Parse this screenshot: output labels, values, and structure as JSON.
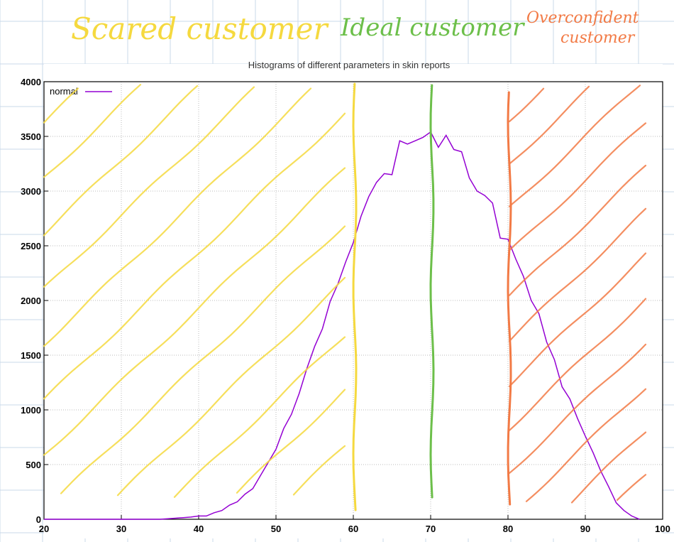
{
  "annotations": {
    "scared": "Scared customer",
    "ideal": "Ideal customer",
    "overconfident_line1": "Overconfident",
    "overconfident_line2": "customer"
  },
  "colors": {
    "scared": "#f5d93f",
    "ideal": "#6cbf4a",
    "overconfident": "#f27a45",
    "series": "#9400d3",
    "notebook_grid": "#c9d9ea"
  },
  "chart_data": {
    "type": "line",
    "title": "Histograms of different parameters in skin reports",
    "xlim": [
      20,
      100
    ],
    "ylim": [
      0,
      4000
    ],
    "xticks": [
      20,
      30,
      40,
      50,
      60,
      70,
      80,
      90,
      100
    ],
    "yticks": [
      0,
      500,
      1000,
      1500,
      2000,
      2500,
      3000,
      3500,
      4000
    ],
    "grid": true,
    "legend_position": "top-left",
    "series": [
      {
        "name": "normal",
        "color": "#9400d3",
        "x": [
          20,
          25,
          30,
          35,
          36,
          37,
          38,
          39,
          40,
          41,
          42,
          43,
          44,
          45,
          46,
          47,
          48,
          49,
          50,
          51,
          52,
          53,
          54,
          55,
          56,
          57,
          58,
          59,
          60,
          61,
          62,
          63,
          64,
          65,
          66,
          67,
          68,
          69,
          70,
          71,
          72,
          73,
          74,
          75,
          76,
          77,
          78,
          79,
          80,
          81,
          82,
          83,
          84,
          85,
          86,
          87,
          88,
          89,
          90,
          91,
          92,
          93,
          94,
          95,
          96,
          97
        ],
        "y": [
          0,
          0,
          0,
          0,
          5,
          10,
          15,
          20,
          30,
          30,
          60,
          80,
          130,
          160,
          230,
          280,
          400,
          520,
          640,
          830,
          960,
          1150,
          1380,
          1580,
          1740,
          1990,
          2150,
          2350,
          2530,
          2770,
          2950,
          3080,
          3160,
          3150,
          3460,
          3430,
          3460,
          3490,
          3540,
          3400,
          3510,
          3380,
          3360,
          3120,
          3000,
          2960,
          2890,
          2570,
          2560,
          2380,
          2220,
          2000,
          1880,
          1620,
          1460,
          1210,
          1100,
          920,
          760,
          610,
          440,
          300,
          150,
          80,
          30,
          0
        ]
      }
    ],
    "regions": [
      {
        "label": "Scared customer",
        "x_range": [
          20,
          60
        ]
      },
      {
        "label": "Ideal customer",
        "x": 70
      },
      {
        "label": "Overconfident customer",
        "x_range": [
          80,
          100
        ]
      }
    ]
  }
}
